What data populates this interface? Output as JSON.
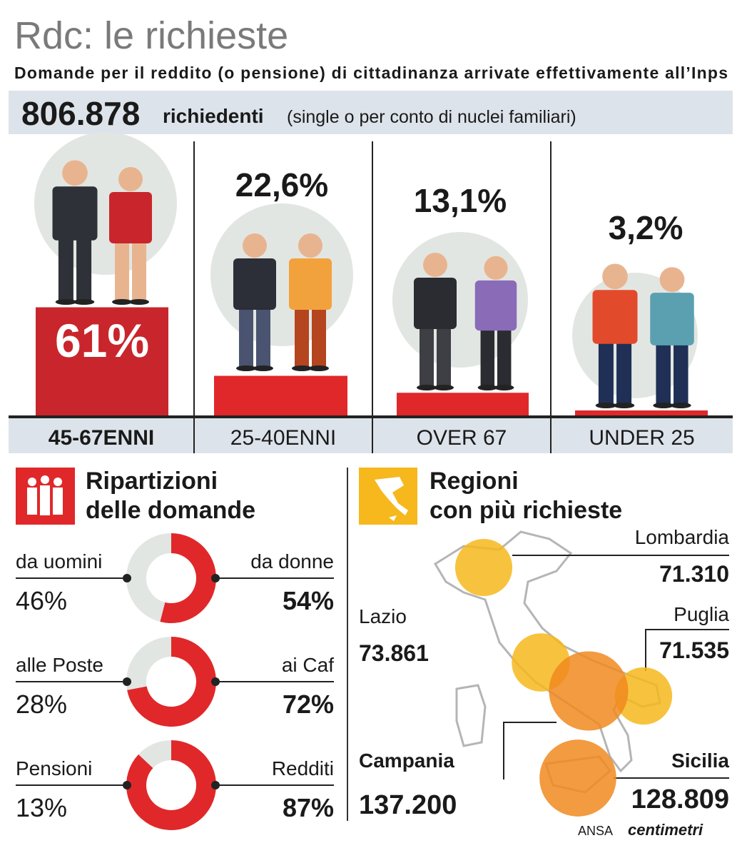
{
  "header": {
    "title": "Rdc: le richieste",
    "subtitle": "Domande per il reddito (o pensione) di cittadinanza arrivate effettivamente all’Inps"
  },
  "total": {
    "value": "806.878",
    "label": "richiedenti",
    "note": "(single o per conto di nuclei familiari)"
  },
  "age_groups": [
    {
      "label": "45-67ENNI",
      "share": {
        "value": 61,
        "label": "61%"
      }
    },
    {
      "label": "25-40ENNI",
      "share": {
        "value": 22.6,
        "label": "22,6%"
      }
    },
    {
      "label": "OVER 67",
      "share": {
        "value": 13.1,
        "label": "13,1%"
      }
    },
    {
      "label": "UNDER 25",
      "share": {
        "value": 3.2,
        "label": "3,2%"
      }
    }
  ],
  "breakdown": {
    "title": [
      "Ripartizioni",
      "delle domande"
    ],
    "items": [
      {
        "left": {
          "name": "da uomini",
          "share": {
            "value": 46,
            "label": "46%"
          }
        },
        "right": {
          "name": "da donne",
          "share": {
            "value": 54,
            "label": "54%"
          }
        }
      },
      {
        "left": {
          "name": "alle Poste",
          "share": {
            "value": 28,
            "label": "28%"
          }
        },
        "right": {
          "name": "ai Caf",
          "share": {
            "value": 72,
            "label": "72%"
          }
        }
      },
      {
        "left": {
          "name": "Pensioni",
          "share": {
            "value": 13,
            "label": "13%"
          }
        },
        "right": {
          "name": "Redditi",
          "share": {
            "value": 87,
            "label": "87%"
          }
        }
      }
    ]
  },
  "regions": {
    "title": [
      "Regioni",
      "con più richieste"
    ],
    "items": [
      {
        "name": "Lombardia",
        "requests": {
          "value": 71310,
          "label": "71.310"
        }
      },
      {
        "name": "Lazio",
        "requests": {
          "value": 73861,
          "label": "73.861"
        }
      },
      {
        "name": "Puglia",
        "requests": {
          "value": 71535,
          "label": "71.535"
        }
      },
      {
        "name": "Campania",
        "requests": {
          "value": 137200,
          "label": "137.200"
        }
      },
      {
        "name": "Sicilia",
        "requests": {
          "value": 128809,
          "label": "128.809"
        }
      }
    ]
  },
  "footer": {
    "source": "ANSA",
    "brand": "centimetri"
  }
}
